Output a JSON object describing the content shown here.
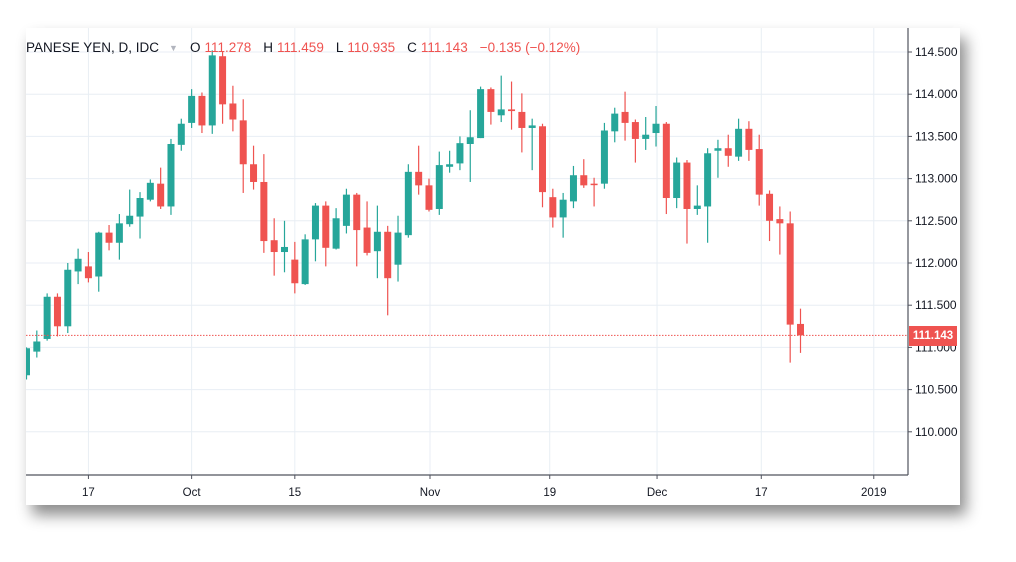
{
  "legend": {
    "symbol": "PANESE YEN, D, IDC",
    "open_label": "O",
    "open": "111.278",
    "high_label": "H",
    "high": "111.459",
    "low_label": "L",
    "low": "110.935",
    "close_label": "C",
    "close": "111.143",
    "change": "−0.135 (−0.12%)"
  },
  "last_price": "111.143",
  "colors": {
    "up": "#26a69a",
    "down": "#ef5350",
    "grid": "#e8eef4",
    "axis": "#50535e"
  },
  "chart_data": {
    "type": "candlestick",
    "title": "JAPANESE YEN, D, IDC",
    "ylim": [
      109.6,
      114.8
    ],
    "y_ticks": [
      "110.000",
      "110.500",
      "111.000",
      "111.500",
      "112.000",
      "112.500",
      "113.000",
      "113.500",
      "114.000",
      "114.500"
    ],
    "x_ticks": [
      {
        "label": "17",
        "at_bar": 6
      },
      {
        "label": "Oct",
        "at_bar": 16
      },
      {
        "label": "15",
        "at_bar": 26
      },
      {
        "label": "Nov",
        "at_bar": 39.1
      },
      {
        "label": "19",
        "at_bar": 50.7
      },
      {
        "label": "Dec",
        "at_bar": 61.1
      },
      {
        "label": "17",
        "at_bar": 71.2
      },
      {
        "label": "2019",
        "at_bar": 82.1
      }
    ],
    "ohlc_fields": [
      "open",
      "high",
      "low",
      "close"
    ],
    "candles": [
      [
        110.67,
        111.0,
        110.62,
        110.99
      ],
      [
        110.95,
        111.2,
        110.88,
        111.07
      ],
      [
        111.1,
        111.64,
        111.08,
        111.6
      ],
      [
        111.6,
        111.64,
        111.13,
        111.25
      ],
      [
        111.25,
        112.0,
        111.17,
        111.92
      ],
      [
        111.9,
        112.17,
        111.75,
        112.05
      ],
      [
        111.96,
        112.13,
        111.77,
        111.82
      ],
      [
        111.84,
        112.37,
        111.66,
        112.36
      ],
      [
        112.36,
        112.45,
        112.15,
        112.24
      ],
      [
        112.24,
        112.58,
        112.04,
        112.47
      ],
      [
        112.46,
        112.87,
        112.43,
        112.56
      ],
      [
        112.55,
        112.84,
        112.29,
        112.77
      ],
      [
        112.75,
        112.99,
        112.73,
        112.95
      ],
      [
        112.94,
        113.13,
        112.64,
        112.67
      ],
      [
        112.67,
        113.47,
        112.57,
        113.41
      ],
      [
        113.4,
        113.71,
        113.33,
        113.65
      ],
      [
        113.66,
        114.06,
        113.6,
        113.98
      ],
      [
        113.98,
        114.02,
        113.54,
        113.63
      ],
      [
        113.63,
        114.52,
        113.53,
        114.46
      ],
      [
        114.45,
        114.5,
        113.65,
        113.88
      ],
      [
        113.89,
        114.1,
        113.56,
        113.7
      ],
      [
        113.69,
        113.94,
        112.83,
        113.17
      ],
      [
        113.17,
        113.39,
        112.87,
        112.96
      ],
      [
        112.96,
        113.29,
        112.12,
        112.26
      ],
      [
        112.27,
        112.53,
        111.85,
        112.13
      ],
      [
        112.13,
        112.5,
        111.89,
        112.19
      ],
      [
        112.04,
        112.25,
        111.64,
        111.76
      ],
      [
        111.75,
        112.34,
        111.74,
        112.28
      ],
      [
        112.28,
        112.71,
        112.02,
        112.68
      ],
      [
        112.68,
        112.73,
        111.96,
        112.18
      ],
      [
        112.17,
        112.65,
        112.16,
        112.53
      ],
      [
        112.44,
        112.88,
        112.35,
        112.81
      ],
      [
        112.81,
        112.83,
        111.96,
        112.39
      ],
      [
        112.42,
        112.73,
        112.09,
        112.12
      ],
      [
        112.14,
        112.68,
        111.82,
        112.37
      ],
      [
        112.37,
        112.44,
        111.38,
        111.82
      ],
      [
        111.98,
        112.56,
        111.78,
        112.36
      ],
      [
        112.33,
        113.17,
        112.3,
        113.08
      ],
      [
        113.08,
        113.39,
        112.81,
        112.92
      ],
      [
        112.92,
        113.0,
        112.61,
        112.63
      ],
      [
        112.64,
        113.32,
        112.57,
        113.16
      ],
      [
        113.14,
        113.33,
        113.07,
        113.17
      ],
      [
        113.18,
        113.5,
        113.1,
        113.42
      ],
      [
        113.41,
        113.81,
        112.96,
        113.49
      ],
      [
        113.48,
        114.09,
        113.48,
        114.06
      ],
      [
        114.06,
        114.08,
        113.64,
        113.79
      ],
      [
        113.75,
        114.22,
        113.67,
        113.82
      ],
      [
        113.82,
        114.15,
        113.58,
        113.8
      ],
      [
        113.79,
        114.01,
        113.31,
        113.6
      ],
      [
        113.6,
        113.71,
        113.1,
        113.63
      ],
      [
        113.62,
        113.65,
        112.66,
        112.84
      ],
      [
        112.78,
        112.88,
        112.42,
        112.54
      ],
      [
        112.54,
        112.83,
        112.3,
        112.75
      ],
      [
        112.73,
        113.15,
        112.65,
        113.04
      ],
      [
        113.04,
        113.23,
        112.89,
        112.92
      ],
      [
        112.94,
        113.01,
        112.67,
        112.93
      ],
      [
        112.94,
        113.66,
        112.88,
        113.57
      ],
      [
        113.56,
        113.84,
        113.43,
        113.77
      ],
      [
        113.79,
        114.03,
        113.45,
        113.66
      ],
      [
        113.67,
        113.7,
        113.19,
        113.47
      ],
      [
        113.47,
        113.73,
        113.34,
        113.52
      ],
      [
        113.54,
        113.86,
        113.38,
        113.65
      ],
      [
        113.65,
        113.67,
        112.58,
        112.77
      ],
      [
        112.77,
        113.25,
        112.65,
        113.19
      ],
      [
        113.19,
        113.22,
        112.23,
        112.64
      ],
      [
        112.64,
        112.92,
        112.57,
        112.68
      ],
      [
        112.67,
        113.36,
        112.24,
        113.3
      ],
      [
        113.33,
        113.46,
        113.01,
        113.36
      ],
      [
        113.36,
        113.52,
        113.14,
        113.27
      ],
      [
        113.26,
        113.71,
        113.21,
        113.59
      ],
      [
        113.59,
        113.68,
        113.21,
        113.34
      ],
      [
        113.35,
        113.52,
        112.68,
        112.81
      ],
      [
        112.82,
        112.86,
        112.26,
        112.5
      ],
      [
        112.52,
        112.67,
        112.1,
        112.47
      ],
      [
        112.47,
        112.61,
        110.82,
        111.27
      ],
      [
        111.278,
        111.459,
        110.935,
        111.143
      ]
    ],
    "last_price_line": 111.143,
    "grid": true
  }
}
